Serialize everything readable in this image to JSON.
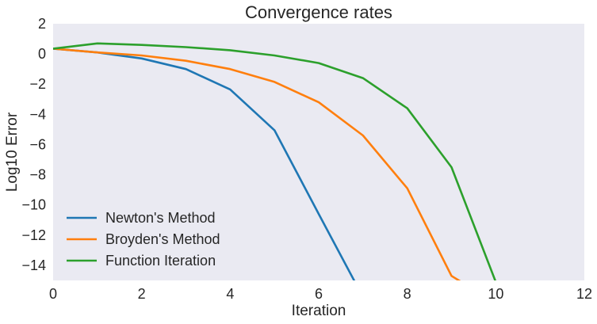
{
  "chart_data": {
    "type": "line",
    "title": "Convergence rates",
    "xlabel": "Iteration",
    "ylabel": "Log10 Error",
    "xlim": [
      0,
      12
    ],
    "ylim": [
      -15,
      2
    ],
    "xticks": [
      0,
      2,
      4,
      6,
      8,
      10,
      12
    ],
    "yticks": [
      2,
      0,
      -2,
      -4,
      -6,
      -8,
      -10,
      -12,
      -14
    ],
    "grid": false,
    "background": "#eaeaf2",
    "legend_position": "lower-left",
    "series": [
      {
        "name": "Newton's Method",
        "color": "#1f77b4",
        "x": [
          0,
          1,
          2,
          3,
          4,
          5,
          6,
          7
        ],
        "y": [
          0.35,
          0.1,
          -0.3,
          -1.0,
          -2.35,
          -5.05,
          -10.6,
          -16.1
        ]
      },
      {
        "name": "Broyden's Method",
        "color": "#ff7f0e",
        "x": [
          0,
          1,
          2,
          3,
          4,
          5,
          6,
          7,
          8,
          9,
          10
        ],
        "y": [
          0.35,
          0.1,
          -0.1,
          -0.45,
          -1.0,
          -1.85,
          -3.2,
          -5.4,
          -8.9,
          -14.7,
          -16.5
        ]
      },
      {
        "name": "Function Iteration",
        "color": "#2ca02c",
        "x": [
          0,
          1,
          2,
          3,
          4,
          5,
          6,
          7,
          8,
          9,
          10
        ],
        "y": [
          0.35,
          0.7,
          0.6,
          0.45,
          0.25,
          -0.1,
          -0.6,
          -1.6,
          -3.6,
          -7.5,
          -15.1
        ]
      }
    ]
  }
}
